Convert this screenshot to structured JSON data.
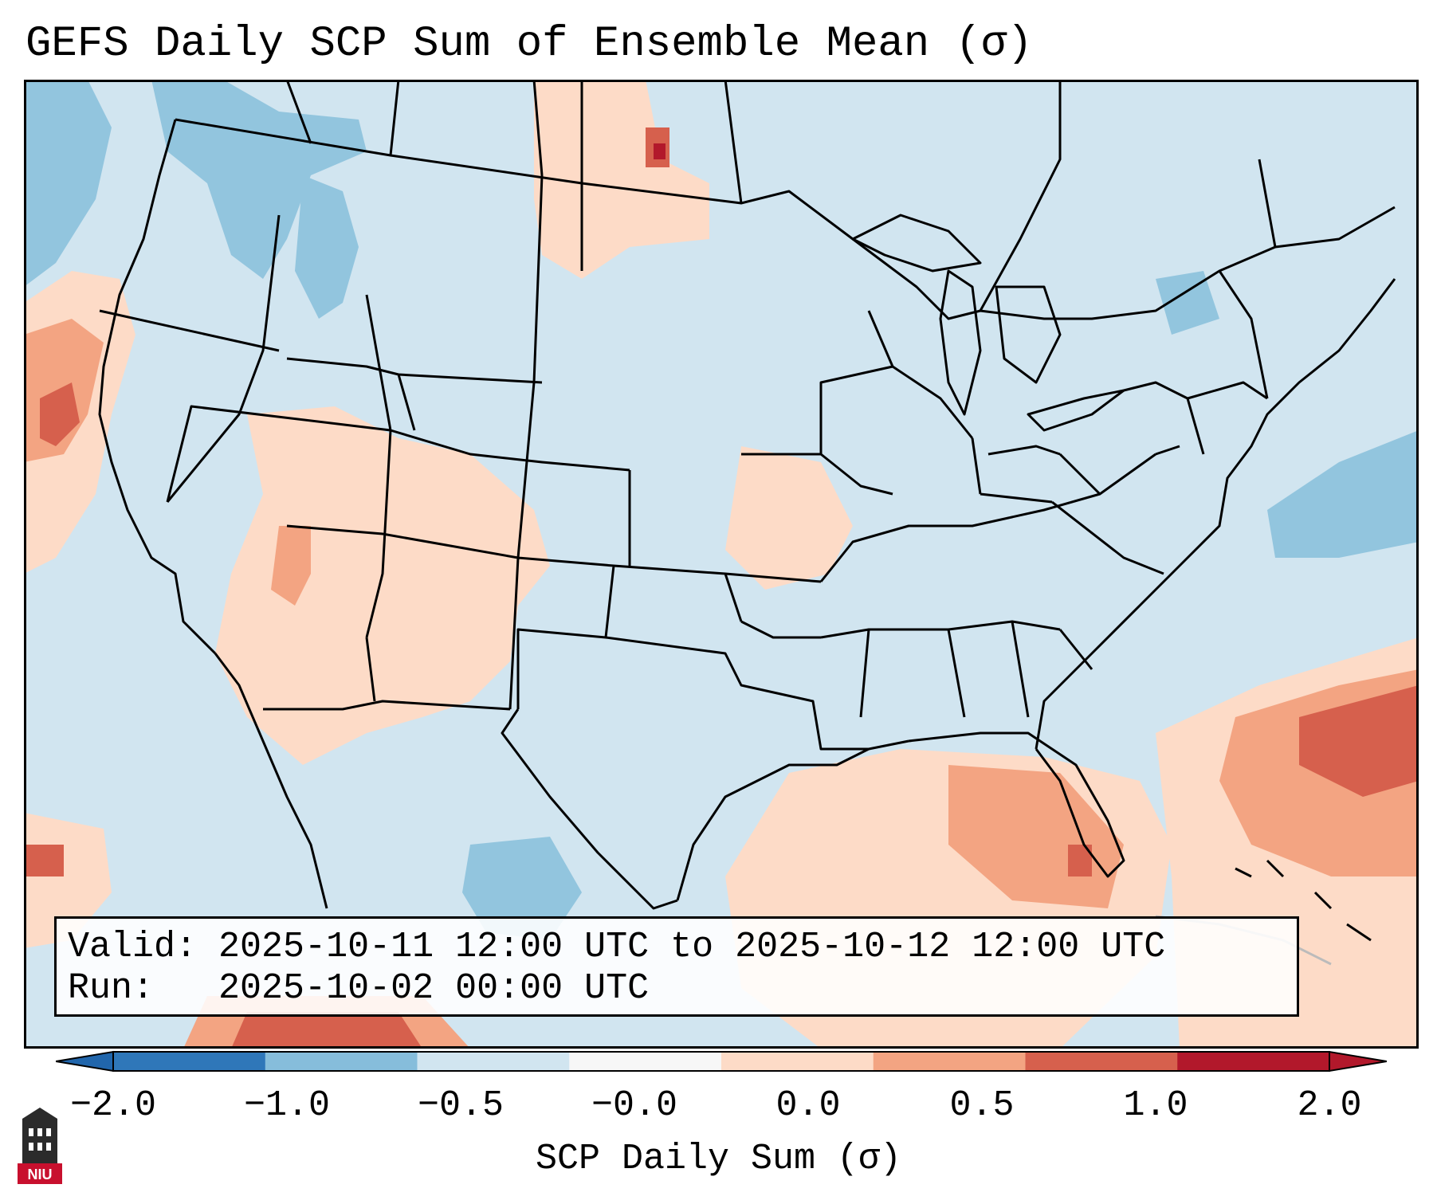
{
  "title": "GEFS Daily SCP Sum of Ensemble Mean (σ)",
  "valid_label": "Valid:",
  "valid_range": "2025-10-11 12:00 UTC to 2025-10-12 12:00 UTC",
  "run_label": "Run:",
  "run_time": "2025-10-02 00:00 UTC",
  "colorbar": {
    "label": "SCP Daily Sum (σ)",
    "ticks": [
      "−2.0",
      "−1.0",
      "−0.5",
      "−0.0",
      "0.0",
      "0.5",
      "1.0",
      "2.0"
    ],
    "colors": [
      "#2f77b9",
      "#86bddb",
      "#d1e5f0",
      "#f7f7f7",
      "#fddbc7",
      "#f3a482",
      "#d6604d",
      "#b2182b"
    ]
  },
  "logo_text": "NIU",
  "colors": {
    "background_field": "#d1e5f0",
    "border": "#000000",
    "light_warm": "#fddbc7",
    "warm": "#f3a482",
    "strong_warm": "#d6604d",
    "cool": "#92c5de",
    "logo_red": "#c8102e"
  }
}
